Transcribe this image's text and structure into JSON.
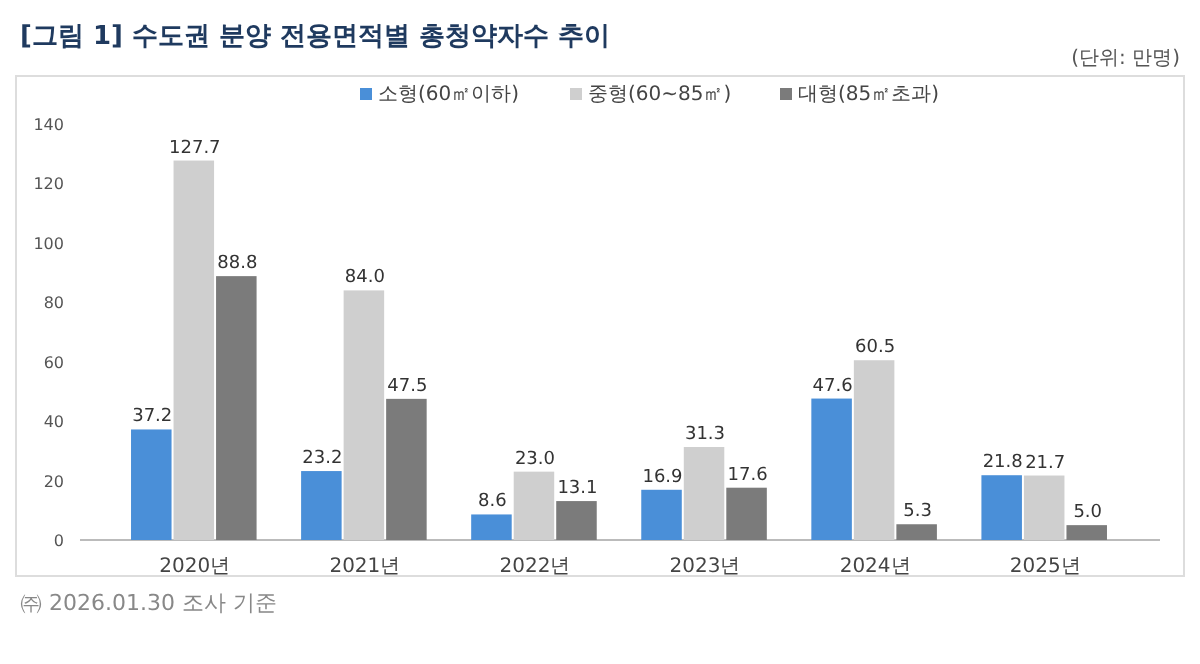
{
  "chart_data": {
    "type": "bar",
    "title": "[그림 1] 수도권 분양 전용면적별 총청약자수 추이",
    "categories": [
      "2020년",
      "2021년",
      "2022년",
      "2023년",
      "2024년",
      "2025년"
    ],
    "series": [
      {
        "name": "소형(60㎡이하)",
        "color": "#4a8fd8",
        "values": [
          37.2,
          23.2,
          8.6,
          16.9,
          47.6,
          21.8
        ],
        "value_labels": [
          "37.2",
          "23.2",
          "8.6",
          "16.9",
          "47.6",
          "21.8"
        ]
      },
      {
        "name": "중형(60~85㎡)",
        "color": "#cfcfcf",
        "values": [
          127.7,
          84.0,
          23.0,
          31.3,
          60.5,
          21.7
        ],
        "value_labels": [
          "127.7",
          "84.0",
          "23.0",
          "31.3",
          "60.5",
          "21.7"
        ]
      },
      {
        "name": "대형(85㎡초과)",
        "color": "#7b7b7b",
        "values": [
          88.8,
          47.5,
          13.1,
          17.6,
          5.3,
          5.0
        ],
        "value_labels": [
          "88.8",
          "47.5",
          "13.1",
          "17.6",
          "5.3",
          "5.0"
        ]
      }
    ],
    "ylim": [
      0,
      140
    ],
    "yticks": [
      0,
      20,
      40,
      60,
      80,
      100,
      120,
      140
    ],
    "grid": false,
    "legend": "top",
    "annotations": [
      "(단위: 만명)",
      "㈜ 2026.01.30 조사 기준"
    ]
  }
}
